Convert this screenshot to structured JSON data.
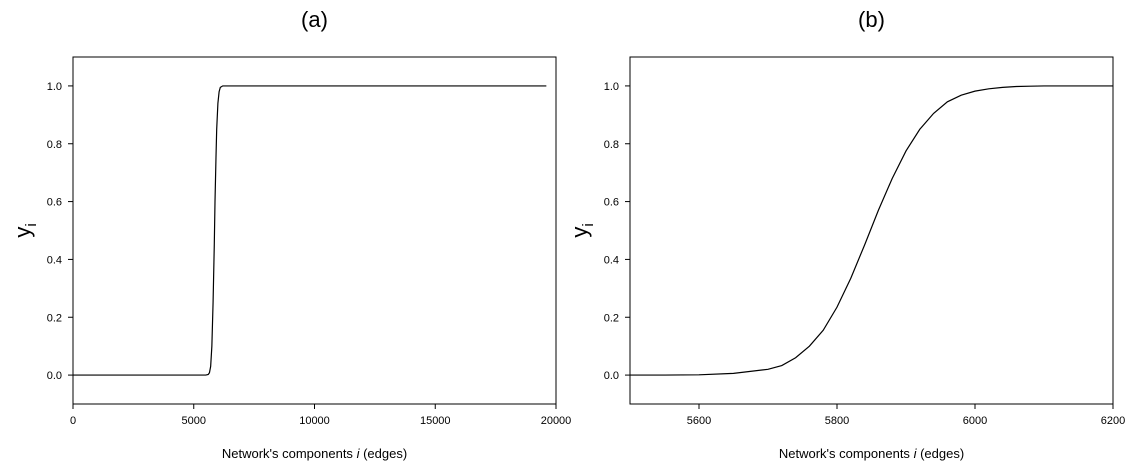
{
  "chart_data": [
    {
      "type": "line",
      "title": "(a)",
      "xlabel_prefix": "Network's components ",
      "xlabel_var": "i",
      "xlabel_suffix": " (edges)",
      "ylabel_main": "y",
      "ylabel_sub": "i",
      "xlim": [
        0,
        20000
      ],
      "ylim": [
        -0.1,
        1.1
      ],
      "xticks": [
        0,
        5000,
        10000,
        15000,
        20000
      ],
      "xtick_labels": [
        "0",
        "5000",
        "10000",
        "15000",
        "20000"
      ],
      "yticks": [
        0.0,
        0.2,
        0.4,
        0.6,
        0.8,
        1.0
      ],
      "ytick_labels": [
        "0.0",
        "0.2",
        "0.4",
        "0.6",
        "0.8",
        "1.0"
      ],
      "grid": false,
      "series": [
        {
          "x": [
            0,
            5500,
            5600,
            5650,
            5700,
            5750,
            5800,
            5850,
            5880,
            5920,
            5950,
            6000,
            6050,
            6100,
            6200,
            19600
          ],
          "y": [
            0.0,
            0.0,
            0.002,
            0.008,
            0.03,
            0.1,
            0.25,
            0.45,
            0.6,
            0.75,
            0.85,
            0.94,
            0.98,
            0.995,
            1.0,
            1.0
          ]
        }
      ]
    },
    {
      "type": "line",
      "title": "(b)",
      "xlabel_prefix": "Network's components ",
      "xlabel_var": "i",
      "xlabel_suffix": " (edges)",
      "ylabel_main": "y",
      "ylabel_sub": "i",
      "xlim": [
        5500,
        6200
      ],
      "ylim": [
        -0.1,
        1.1
      ],
      "xticks": [
        5600,
        5800,
        6000,
        6200
      ],
      "xtick_labels": [
        "5600",
        "5800",
        "6000",
        "6200"
      ],
      "yticks": [
        0.0,
        0.2,
        0.4,
        0.6,
        0.8,
        1.0
      ],
      "ytick_labels": [
        "0.0",
        "0.2",
        "0.4",
        "0.6",
        "0.8",
        "1.0"
      ],
      "grid": false,
      "series": [
        {
          "x": [
            5500,
            5550,
            5600,
            5650,
            5700,
            5720,
            5740,
            5760,
            5780,
            5800,
            5820,
            5840,
            5860,
            5880,
            5900,
            5920,
            5940,
            5960,
            5980,
            6000,
            6020,
            6040,
            6060,
            6080,
            6100,
            6150,
            6200
          ],
          "y": [
            0.0,
            0.0,
            0.001,
            0.006,
            0.02,
            0.033,
            0.06,
            0.1,
            0.155,
            0.235,
            0.335,
            0.45,
            0.57,
            0.68,
            0.775,
            0.85,
            0.905,
            0.945,
            0.968,
            0.982,
            0.99,
            0.995,
            0.998,
            0.999,
            1.0,
            1.0,
            1.0
          ]
        }
      ]
    }
  ]
}
